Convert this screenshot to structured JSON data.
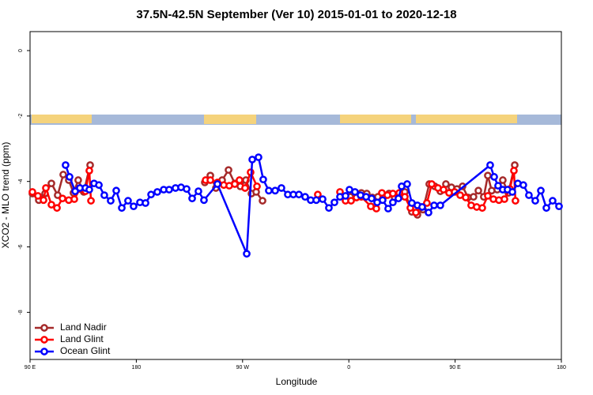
{
  "chart_data": {
    "type": "line",
    "title": "37.5N-42.5N September (Ver 10)   2015-01-01 to 2020-12-18",
    "x_label": "Longitude",
    "y_label": "XCO2 - MLO trend (ppm)",
    "xlim": [
      90,
      540
    ],
    "xticks": [
      {
        "value": 90,
        "label": "90 E"
      },
      {
        "value": 180,
        "label": "180"
      },
      {
        "value": 270,
        "label": "90 W"
      },
      {
        "value": 360,
        "label": "0"
      },
      {
        "value": 450,
        "label": "90 E"
      },
      {
        "value": 540,
        "label": "180"
      }
    ],
    "ylim": [
      -9.44,
      0.58
    ],
    "yticks": [
      0,
      -2,
      -4,
      -6,
      -8
    ],
    "legend": "bottom-left",
    "series": [
      {
        "name": "Land Nadir",
        "color": "#a52a2a",
        "x": [
          92.0,
          97.4,
          102.7,
          108.1,
          113.4,
          118.1,
          122.8,
          126.8,
          130.8,
          135.5,
          140.9,
          null,
          238.0,
          242.7,
          247.4,
          252.7,
          258.1,
          263.4,
          268.1,
          272.8,
          277.5,
          281.5,
          286.9,
          null,
          361.2,
          365.9,
          370.6,
          375.2,
          379.9,
          384.6,
          389.3,
          394.0,
          398.7,
          402.7,
          407.4,
          413.4,
          418.1,
          422.8,
          428.1,
          432.8,
          437.5,
          442.2,
          446.9,
          451.6,
          456.3,
          461.0,
          465.6,
          469.7,
          474.3,
          477.7,
          481.0,
          485.7,
          490.4,
          495.1,
          500.5
        ],
        "values": [
          -4.37,
          -4.57,
          -4.37,
          -4.06,
          -4.42,
          -3.79,
          -3.96,
          -4.35,
          -3.96,
          -4.32,
          -3.5,
          null,
          -4.03,
          -3.82,
          -4.2,
          -3.96,
          -3.65,
          -4.06,
          -4.15,
          -3.96,
          -4.37,
          -4.32,
          -4.59,
          null,
          -4.47,
          -4.4,
          -4.35,
          -4.37,
          -4.49,
          -4.47,
          -4.47,
          -4.37,
          -4.49,
          -4.44,
          -4.32,
          -4.93,
          -5.02,
          -4.86,
          -4.08,
          -4.15,
          -4.3,
          -4.08,
          -4.18,
          -4.23,
          -4.15,
          -4.49,
          -4.47,
          -4.28,
          -4.47,
          -3.82,
          -4.28,
          -4.25,
          -3.96,
          -4.35,
          -3.5
        ]
      },
      {
        "name": "Land Glint",
        "color": "#ff0000",
        "x": [
          92.0,
          96.7,
          101.4,
          103.4,
          108.1,
          112.8,
          117.5,
          122.8,
          127.5,
          132.2,
          136.9,
          140.2,
          141.6,
          null,
          238.7,
          242.7,
          248.7,
          254.1,
          258.7,
          263.4,
          267.4,
          272.1,
          276.8,
          282.2,
          null,
          333.7,
          null,
          352.5,
          357.2,
          361.9,
          366.5,
          370.6,
          378.6,
          383.3,
          388.0,
          392.7,
          397.3,
          402.7,
          407.4,
          412.1,
          416.8,
          421.5,
          426.1,
          430.2,
          435.5,
          440.2,
          444.9,
          449.6,
          454.3,
          459.0,
          463.6,
          468.3,
          473.0,
          477.7,
          482.4,
          487.1,
          491.8,
          496.4,
          499.8,
          501.1
        ],
        "values": [
          -4.32,
          -4.44,
          -4.57,
          -4.2,
          -4.71,
          -4.81,
          -4.52,
          -4.57,
          -4.54,
          -4.23,
          -4.3,
          -3.67,
          -4.59,
          null,
          -3.96,
          -3.96,
          -4.03,
          -4.11,
          -4.13,
          -4.08,
          -3.96,
          -4.2,
          -3.72,
          -4.15,
          null,
          -4.4,
          null,
          -4.32,
          -4.59,
          -4.59,
          -4.49,
          -4.47,
          -4.76,
          -4.83,
          -4.35,
          -4.42,
          -4.37,
          -4.35,
          -4.47,
          -4.81,
          -4.95,
          -4.78,
          -4.66,
          -4.08,
          -4.2,
          -4.25,
          -4.35,
          -4.32,
          -4.42,
          -4.49,
          -4.73,
          -4.78,
          -4.81,
          -4.44,
          -4.54,
          -4.57,
          -4.54,
          -4.23,
          -3.67,
          -4.59
        ]
      },
      {
        "name": "Ocean Glint",
        "color": "#0000ff",
        "x": [
          120.1,
          123.5,
          128.2,
          132.2,
          136.9,
          140.2,
          144.2,
          148.3,
          152.9,
          158.3,
          163.0,
          167.7,
          173.0,
          177.7,
          183.1,
          187.8,
          192.5,
          197.8,
          203.2,
          207.8,
          213.2,
          217.9,
          222.6,
          227.3,
          232.6,
          237.3,
          248.7,
          273.5,
          278.2,
          283.5,
          287.5,
          292.2,
          297.6,
          302.9,
          308.3,
          313.0,
          317.7,
          323.0,
          327.7,
          332.4,
          337.8,
          343.1,
          347.8,
          352.5,
          357.2,
          360.5,
          365.2,
          369.9,
          374.6,
          379.3,
          384.0,
          388.6,
          393.3,
          397.3,
          402.0,
          404.7,
          409.4,
          413.4,
          418.1,
          422.1,
          427.5,
          432.2,
          437.5,
          479.7,
          483.1,
          486.4,
          490.4,
          494.4,
          498.5,
          503.1,
          507.8,
          512.5,
          517.9,
          522.6,
          527.3,
          532.6,
          538.0
        ],
        "values": [
          -3.5,
          -3.86,
          -4.3,
          -4.2,
          -4.2,
          -4.25,
          -4.06,
          -4.11,
          -4.42,
          -4.59,
          -4.28,
          -4.81,
          -4.59,
          -4.76,
          -4.64,
          -4.66,
          -4.4,
          -4.32,
          -4.25,
          -4.25,
          -4.2,
          -4.18,
          -4.23,
          -4.52,
          -4.3,
          -4.57,
          -4.08,
          -6.21,
          -3.33,
          -3.26,
          -3.94,
          -4.28,
          -4.28,
          -4.2,
          -4.4,
          -4.4,
          -4.4,
          -4.47,
          -4.57,
          -4.57,
          -4.54,
          -4.81,
          -4.64,
          -4.47,
          -4.44,
          -4.25,
          -4.32,
          -4.42,
          -4.47,
          -4.52,
          -4.64,
          -4.57,
          -4.83,
          -4.64,
          -4.52,
          -4.15,
          -4.08,
          -4.66,
          -4.73,
          -4.78,
          -4.95,
          -4.73,
          -4.73,
          -3.5,
          -3.86,
          -4.13,
          -4.25,
          -4.25,
          -4.32,
          -4.06,
          -4.11,
          -4.42,
          -4.59,
          -4.28,
          -4.81,
          -4.59,
          -4.76
        ]
      }
    ]
  }
}
